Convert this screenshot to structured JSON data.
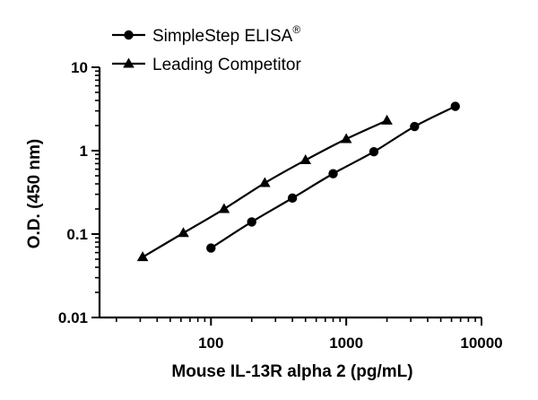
{
  "chart_data": {
    "type": "line",
    "title": "",
    "xlabel": "Mouse IL-13R alpha 2 (pg/mL)",
    "ylabel": "O.D. (450 nm)",
    "xscale": "log",
    "yscale": "log",
    "xlim": [
      15,
      10000
    ],
    "ylim": [
      0.01,
      10
    ],
    "xticks": [
      100,
      1000,
      10000
    ],
    "xtick_labels": [
      "100",
      "1000",
      "10000"
    ],
    "yticks": [
      0.01,
      0.1,
      1,
      10
    ],
    "ytick_labels": [
      "0.01",
      "0.1",
      "1",
      "10"
    ],
    "grid": false,
    "legend_position": "top-left",
    "series": [
      {
        "name": "SimpleStep ELISA",
        "name_superscript": "®",
        "marker": "circle",
        "color": "#000000",
        "x": [
          100,
          200,
          400,
          800,
          1600,
          3200,
          6400
        ],
        "y": [
          0.068,
          0.14,
          0.27,
          0.53,
          0.97,
          1.95,
          3.4
        ]
      },
      {
        "name": "Leading Competitor",
        "marker": "triangle",
        "color": "#000000",
        "x": [
          31.25,
          62.5,
          125,
          250,
          500,
          1000,
          2000
        ],
        "y": [
          0.053,
          0.103,
          0.2,
          0.41,
          0.77,
          1.38,
          2.3
        ]
      }
    ]
  }
}
